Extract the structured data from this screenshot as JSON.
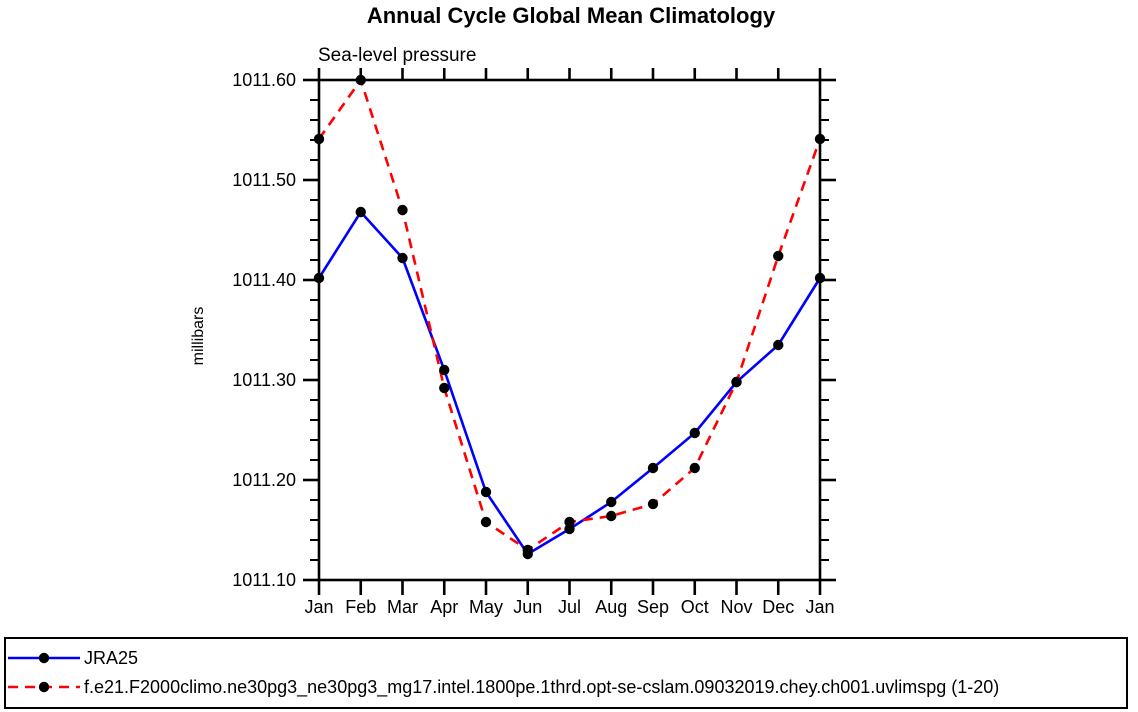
{
  "chart_data": {
    "type": "line",
    "title": "Annual Cycle Global Mean Climatology",
    "subtitle": "Sea-level pressure",
    "ylabel": "millibars",
    "categories": [
      "Jan",
      "Feb",
      "Mar",
      "Apr",
      "May",
      "Jun",
      "Jul",
      "Aug",
      "Sep",
      "Oct",
      "Nov",
      "Dec",
      "Jan"
    ],
    "y_axis": {
      "min": 1011.1,
      "max": 1011.6,
      "major_step": 0.1,
      "minor_step": 0.02,
      "tick_labels": [
        "1011.60",
        "1011.50",
        "1011.40",
        "1011.30",
        "1011.20",
        "1011.10"
      ]
    },
    "x_axis": {
      "tick_labels": [
        "Jan",
        "Feb",
        "Mar",
        "Apr",
        "May",
        "Jun",
        "Jul",
        "Aug",
        "Sep",
        "Oct",
        "Nov",
        "Dec",
        "Jan"
      ]
    },
    "grid": false,
    "legend_position": "bottom-left-box",
    "series": [
      {
        "name": "JRA25",
        "color": "#0000ff",
        "line_style": "solid",
        "marker": "filled-circle",
        "marker_color": "#000000",
        "values": [
          1011.402,
          1011.468,
          1011.422,
          1011.31,
          1011.188,
          1011.126,
          1011.151,
          1011.178,
          1011.212,
          1011.247,
          1011.298,
          1011.335,
          1011.402
        ]
      },
      {
        "name": "f.e21.F2000climo.ne30pg3_ne30pg3_mg17.intel.1800pe.1thrd.opt-se-cslam.09032019.chey.ch001.uvlimspg (1-20)",
        "color": "#ff0000",
        "line_style": "dashed",
        "marker": "filled-circle",
        "marker_color": "#000000",
        "values": [
          1011.541,
          1011.6,
          1011.47,
          1011.292,
          1011.158,
          1011.13,
          1011.158,
          1011.164,
          1011.176,
          1011.212,
          1011.298,
          1011.424,
          1011.541
        ]
      }
    ],
    "colors": {
      "axis": "#000000",
      "marker": "#000000",
      "background": "#ffffff",
      "jra25_line": "#0000ff",
      "model_line": "#ff0000"
    }
  }
}
